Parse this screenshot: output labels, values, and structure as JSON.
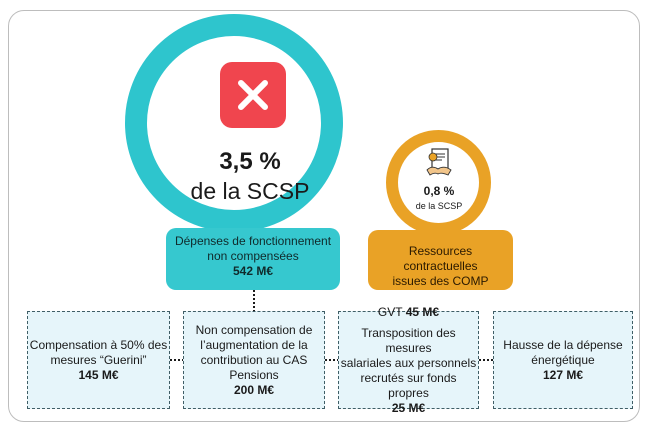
{
  "main_ratio": {
    "percentage": "3,5 %",
    "subtitle": "de la SCSP",
    "box": {
      "line1": "Dépenses de fonctionnement",
      "line2": "non compensées",
      "amount": "542 M€"
    }
  },
  "secondary_ratio": {
    "percentage": "0,8 %",
    "subtitle": "de la SCSP",
    "box": {
      "line1": "Ressources contractuelles",
      "line2": "issues des COMP"
    }
  },
  "cards": [
    {
      "lines": [
        "Compensation à 50% des",
        "mesures “Guerini”"
      ],
      "amount": "145 M€"
    },
    {
      "lines": [
        "Non compensation de",
        "l’augmentation de la",
        "contribution au CAS",
        "Pensions"
      ],
      "amount": "200 M€"
    },
    {
      "gvt_label": "GVT",
      "gvt_amount": "45 M€",
      "lines": [
        "Transposition des mesures",
        "salariales aux personnels",
        "recrutés sur fonds propres"
      ],
      "amount": "25 M€"
    },
    {
      "lines": [
        "Hausse de la dépense",
        "énergétique"
      ],
      "amount": "127 M€"
    }
  ],
  "colors": {
    "teal": "#2ec5cd",
    "orange": "#e9a226",
    "red": "#f0454e",
    "card_bg": "#e6f5fa"
  },
  "icons": [
    "close-icon",
    "contract-handshake-icon"
  ]
}
